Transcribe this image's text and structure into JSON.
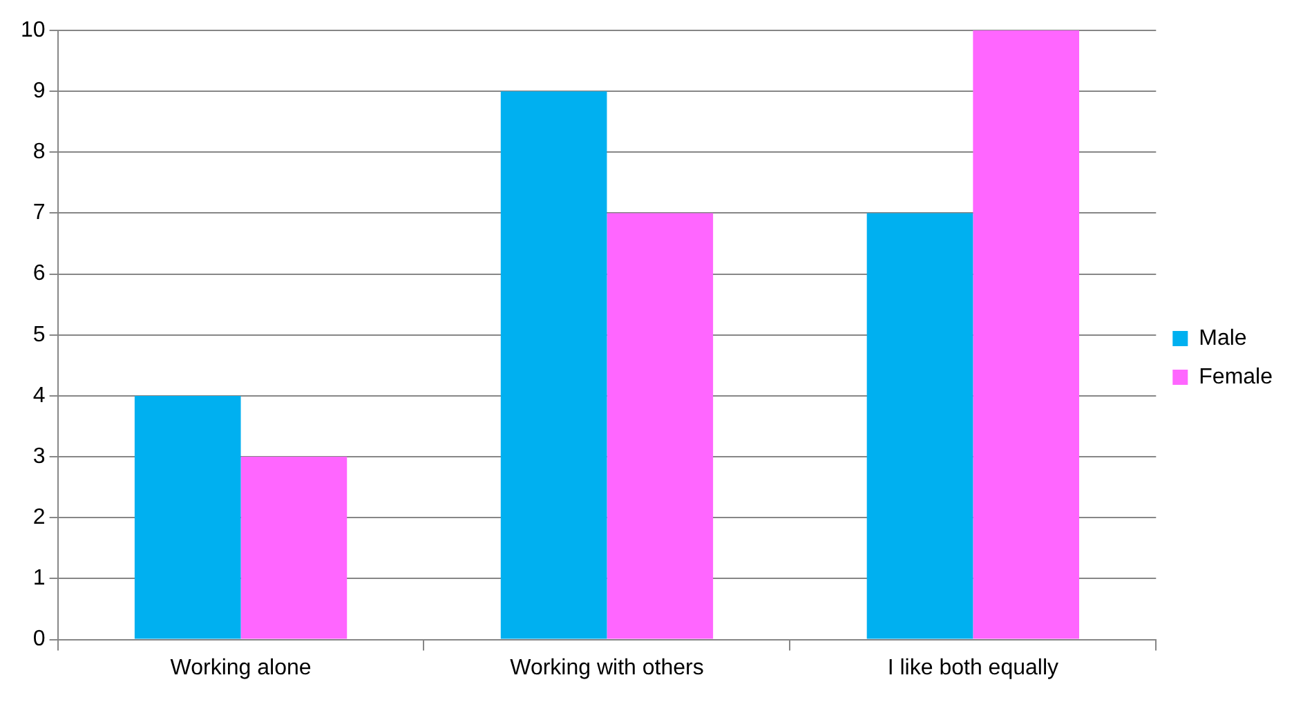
{
  "chart_data": {
    "type": "bar",
    "categories": [
      "Working alone",
      "Working with others",
      "I like both equally"
    ],
    "series": [
      {
        "name": "Male",
        "color": "#00b0f0",
        "values": [
          4,
          9,
          7
        ]
      },
      {
        "name": "Female",
        "color": "#ff66ff",
        "values": [
          3,
          7,
          10
        ]
      }
    ],
    "ylim": [
      0,
      10
    ],
    "yticks": [
      0,
      1,
      2,
      3,
      4,
      5,
      6,
      7,
      8,
      9,
      10
    ],
    "grid": "y",
    "legend": "right"
  }
}
